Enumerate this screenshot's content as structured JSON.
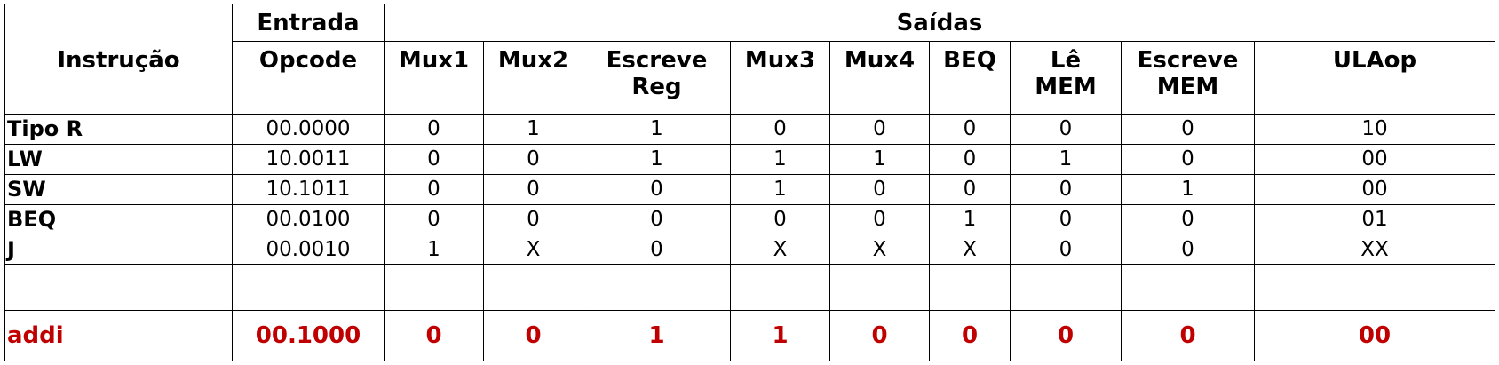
{
  "header": {
    "group_entrada": "Entrada",
    "group_saidas": "Saídas",
    "instrucao": "Instrução",
    "opcode": "Opcode",
    "mux1": "Mux1",
    "mux2": "Mux2",
    "escreve_reg": "Escreve Reg",
    "mux3": "Mux3",
    "mux4": "Mux4",
    "beq": "BEQ",
    "le_mem": "Lê MEM",
    "escreve_mem": "Escreve MEM",
    "ulaop": "ULAop"
  },
  "rows": [
    {
      "instr": "Tipo R",
      "opcode": "00.0000",
      "mux1": "0",
      "mux2": "1",
      "escreve_reg": "1",
      "mux3": "0",
      "mux4": "0",
      "beq": "0",
      "le_mem": "0",
      "escreve_mem": "0",
      "ulaop": "10"
    },
    {
      "instr": "LW",
      "opcode": "10.0011",
      "mux1": "0",
      "mux2": "0",
      "escreve_reg": "1",
      "mux3": "1",
      "mux4": "1",
      "beq": "0",
      "le_mem": "1",
      "escreve_mem": "0",
      "ulaop": "00"
    },
    {
      "instr": "SW",
      "opcode": "10.1011",
      "mux1": "0",
      "mux2": "0",
      "escreve_reg": "0",
      "mux3": "1",
      "mux4": "0",
      "beq": "0",
      "le_mem": "0",
      "escreve_mem": "1",
      "ulaop": "00"
    },
    {
      "instr": "BEQ",
      "opcode": "00.0100",
      "mux1": "0",
      "mux2": "0",
      "escreve_reg": "0",
      "mux3": "0",
      "mux4": "0",
      "beq": "1",
      "le_mem": "0",
      "escreve_mem": "0",
      "ulaop": "01"
    },
    {
      "instr": "J",
      "opcode": "00.0010",
      "mux1": "1",
      "mux2": "X",
      "escreve_reg": "0",
      "mux3": "X",
      "mux4": "X",
      "beq": "X",
      "le_mem": "0",
      "escreve_mem": "0",
      "ulaop": "XX"
    }
  ],
  "highlight_row": {
    "instr": "addi",
    "opcode": "00.1000",
    "mux1": "0",
    "mux2": "0",
    "escreve_reg": "1",
    "mux3": "1",
    "mux4": "0",
    "beq": "0",
    "le_mem": "0",
    "escreve_mem": "0",
    "ulaop": "00"
  },
  "colors": {
    "highlight": "#c00000",
    "text": "#000000",
    "border": "#000000"
  }
}
